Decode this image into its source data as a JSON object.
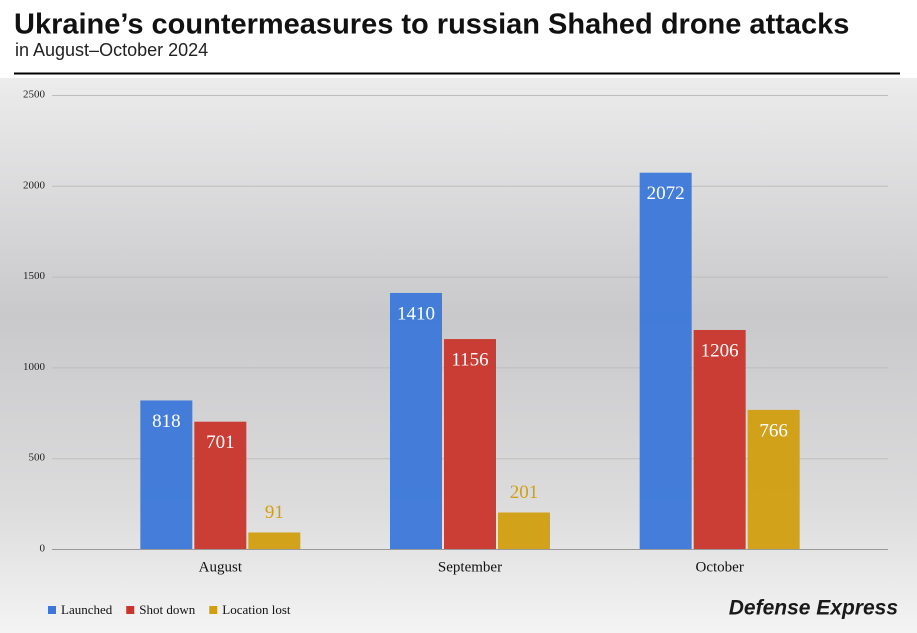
{
  "chart_data": {
    "type": "bar",
    "title": "Ukraine’s countermeasures to russian Shahed drone attacks",
    "subtitle": "in August–October 2024",
    "categories": [
      "August",
      "September",
      "October"
    ],
    "series": [
      {
        "name": "Launched",
        "color": "#3b78d9",
        "values": [
          818,
          1410,
          2072
        ]
      },
      {
        "name": "Shot down",
        "color": "#c9352b",
        "values": [
          701,
          1156,
          1206
        ]
      },
      {
        "name": "Location lost",
        "color": "#d19f0f",
        "values": [
          91,
          201,
          766
        ]
      }
    ],
    "ylim": [
      0,
      2500
    ],
    "yticks": [
      0,
      500,
      1000,
      1500,
      2000,
      2500
    ],
    "grid": true,
    "legend": "bottom-left",
    "source": "Defense Express"
  }
}
